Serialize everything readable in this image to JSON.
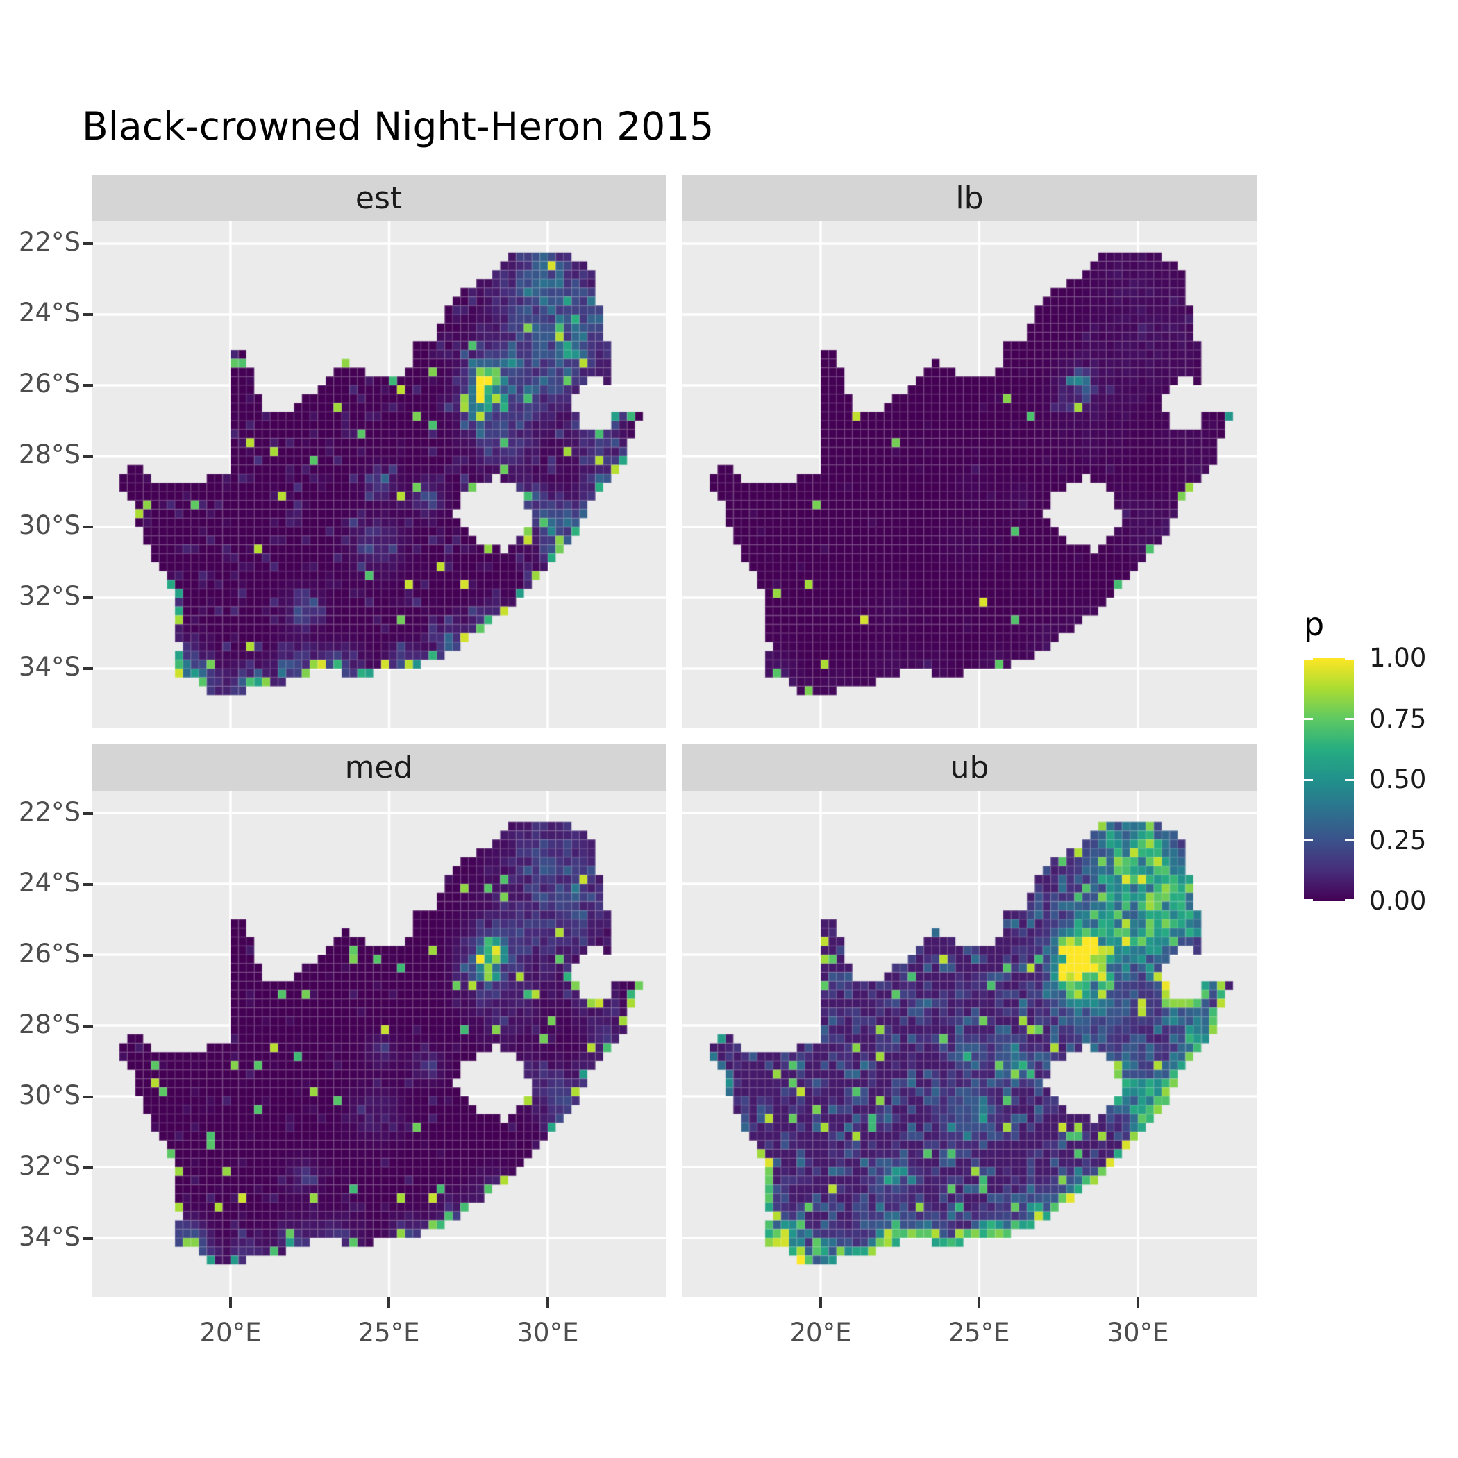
{
  "title": "Black-crowned Night-Heron 2015",
  "legend": {
    "title": "p",
    "labels": [
      "1.00",
      "0.75",
      "0.50",
      "0.25",
      "0.00"
    ],
    "values": [
      1.0,
      0.75,
      0.5,
      0.25,
      0.0
    ]
  },
  "axes": {
    "x": {
      "labels": [
        "20°E",
        "25°E",
        "30°E"
      ],
      "lons": [
        20,
        25,
        30
      ]
    },
    "y": {
      "labels": [
        "22°S",
        "24°S",
        "26°S",
        "28°S",
        "30°S",
        "32°S",
        "34°S"
      ],
      "lats": [
        -22,
        -24,
        -26,
        -28,
        -30,
        -32,
        -34
      ]
    }
  },
  "colors": {
    "background": "#FFFFFF",
    "panel": "#EBEBEB",
    "strip": "#D5D5D5",
    "grid": "#FFFFFF",
    "axis_text": "#4D4D4D",
    "tick": "#333333",
    "title_text": "#000000",
    "strip_text": "#1A1A1A",
    "legend_text": "#1A1A1A",
    "cell_grid": "rgba(255,255,255,0.13)"
  },
  "viridis": [
    {
      "t": 0.0,
      "color": "#440154"
    },
    {
      "t": 0.125,
      "color": "#472d7b"
    },
    {
      "t": 0.25,
      "color": "#3b528b"
    },
    {
      "t": 0.375,
      "color": "#2c728e"
    },
    {
      "t": 0.5,
      "color": "#21918c"
    },
    {
      "t": 0.625,
      "color": "#27ad81"
    },
    {
      "t": 0.75,
      "color": "#5ec962"
    },
    {
      "t": 0.875,
      "color": "#aadc32"
    },
    {
      "t": 1.0,
      "color": "#fde725"
    }
  ],
  "chart_data": {
    "type": "heatmap",
    "title": "Black-crowned Night-Heron 2015",
    "facet_labels": [
      "est",
      "lb",
      "med",
      "ub"
    ],
    "x_ticks": [
      "20°E",
      "25°E",
      "30°E"
    ],
    "y_ticks": [
      "22°S",
      "24°S",
      "26°S",
      "28°S",
      "30°S",
      "32°S",
      "34°S"
    ],
    "x_range_lon": [
      15.62,
      33.75
    ],
    "y_range_lat": [
      -35.67,
      -21.37
    ],
    "colorbar": {
      "title": "p",
      "range": [
        0,
        1
      ],
      "ticks": [
        0,
        0.25,
        0.5,
        0.75,
        1
      ],
      "palette": "viridis"
    },
    "grid": "major-only-white",
    "legend_position": "right",
    "cell_deg": 0.25,
    "facets": [
      {
        "label": "est",
        "seed": 3,
        "hot_weight": 0.5,
        "base": 0.0,
        "noise_threshold": 0.78,
        "noise_amp": 0.6,
        "noise_hot_mix": 0.25,
        "spike_threshold": 0.975,
        "spike_value": 0.95,
        "core_amp": 0.9,
        "edge_prob": 0.38,
        "edge_value": 0.95
      },
      {
        "label": "lb",
        "seed": 7,
        "hot_weight": 0.07,
        "base": 0.0,
        "noise_threshold": 0.94,
        "noise_amp": 0.12,
        "noise_hot_mix": 0.3,
        "spike_threshold": 0.9955,
        "spike_value": 0.95,
        "core_amp": 0.5,
        "edge_prob": 0.1,
        "edge_value": 0.9
      },
      {
        "label": "med",
        "seed": 5,
        "hot_weight": 0.3,
        "base": 0.0,
        "noise_threshold": 0.9,
        "noise_amp": 0.35,
        "noise_hot_mix": 0.3,
        "spike_threshold": 0.968,
        "spike_value": 0.93,
        "core_amp": 1.1,
        "edge_prob": 0.3,
        "edge_value": 0.95
      },
      {
        "label": "ub",
        "seed": 9,
        "hot_weight": 0.9,
        "base": 0.07,
        "noise_threshold": 0.48,
        "noise_amp": 0.6,
        "noise_hot_mix": 0.55,
        "spike_threshold": 0.94,
        "spike_value": 0.92,
        "core_amp": 1.2,
        "edge_prob": 0.85,
        "edge_value": 1.0
      }
    ],
    "map": {
      "boundary": [
        [
          16.45,
          -28.63
        ],
        [
          17.05,
          -28.25
        ],
        [
          17.45,
          -28.7
        ],
        [
          18.2,
          -28.88
        ],
        [
          19.0,
          -28.75
        ],
        [
          19.6,
          -28.5
        ],
        [
          19.98,
          -28.43
        ],
        [
          19.98,
          -24.77
        ],
        [
          20.35,
          -25.05
        ],
        [
          20.65,
          -25.5
        ],
        [
          20.85,
          -26.15
        ],
        [
          21.15,
          -26.85
        ],
        [
          21.7,
          -26.85
        ],
        [
          22.2,
          -26.4
        ],
        [
          22.65,
          -26.12
        ],
        [
          22.9,
          -25.9
        ],
        [
          23.5,
          -25.3
        ],
        [
          24.2,
          -25.65
        ],
        [
          24.9,
          -25.82
        ],
        [
          25.6,
          -25.65
        ],
        [
          25.9,
          -24.75
        ],
        [
          26.45,
          -24.63
        ],
        [
          26.85,
          -23.75
        ],
        [
          27.55,
          -23.25
        ],
        [
          28.3,
          -22.9
        ],
        [
          29.05,
          -22.2
        ],
        [
          29.7,
          -22.15
        ],
        [
          30.4,
          -22.35
        ],
        [
          31.3,
          -22.4
        ],
        [
          31.55,
          -23.6
        ],
        [
          31.9,
          -24.8
        ],
        [
          32.0,
          -25.6
        ],
        [
          31.95,
          -25.95
        ],
        [
          31.4,
          -25.72
        ],
        [
          30.95,
          -25.98
        ],
        [
          30.78,
          -26.45
        ],
        [
          30.92,
          -26.95
        ],
        [
          31.15,
          -27.2
        ],
        [
          31.55,
          -27.3
        ],
        [
          31.97,
          -27.32
        ],
        [
          32.13,
          -26.84
        ],
        [
          32.89,
          -26.86
        ],
        [
          32.6,
          -27.5
        ],
        [
          32.4,
          -28.15
        ],
        [
          32.0,
          -28.6
        ],
        [
          31.6,
          -29.0
        ],
        [
          31.05,
          -29.87
        ],
        [
          30.6,
          -30.6
        ],
        [
          30.15,
          -31.0
        ],
        [
          29.5,
          -31.65
        ],
        [
          28.9,
          -32.25
        ],
        [
          28.1,
          -32.8
        ],
        [
          27.4,
          -33.25
        ],
        [
          26.5,
          -33.75
        ],
        [
          25.65,
          -33.95
        ],
        [
          25.0,
          -34.0
        ],
        [
          24.2,
          -34.2
        ],
        [
          23.4,
          -34.1
        ],
        [
          22.6,
          -34.05
        ],
        [
          21.8,
          -34.4
        ],
        [
          21.0,
          -34.4
        ],
        [
          20.3,
          -34.75
        ],
        [
          20.0,
          -34.83
        ],
        [
          19.4,
          -34.65
        ],
        [
          19.1,
          -34.35
        ],
        [
          18.8,
          -34.1
        ],
        [
          18.48,
          -34.35
        ],
        [
          18.35,
          -34.1
        ],
        [
          18.3,
          -33.85
        ],
        [
          18.45,
          -33.4
        ],
        [
          18.2,
          -33.1
        ],
        [
          18.1,
          -32.75
        ],
        [
          18.3,
          -32.55
        ],
        [
          18.25,
          -31.9
        ],
        [
          17.85,
          -31.3
        ],
        [
          17.55,
          -30.8
        ],
        [
          17.25,
          -30.3
        ],
        [
          17.05,
          -29.7
        ],
        [
          16.8,
          -29.2
        ]
      ],
      "hole": [
        [
          27.05,
          -29.62
        ],
        [
          27.35,
          -29.1
        ],
        [
          27.75,
          -28.85
        ],
        [
          28.35,
          -28.6
        ],
        [
          28.9,
          -28.75
        ],
        [
          29.35,
          -29.25
        ],
        [
          29.45,
          -29.8
        ],
        [
          29.15,
          -30.2
        ],
        [
          28.6,
          -30.65
        ],
        [
          28.1,
          -30.55
        ],
        [
          27.65,
          -30.35
        ],
        [
          27.3,
          -30.0
        ]
      ],
      "hotspots": [
        [
          28.0,
          -26.15,
          0.35,
          1.3
        ],
        [
          28.25,
          -25.75,
          0.5,
          0.7
        ],
        [
          27.9,
          -26.8,
          0.45,
          0.5
        ],
        [
          29.3,
          -25.8,
          0.9,
          0.45
        ],
        [
          30.2,
          -23.9,
          1.0,
          0.5
        ],
        [
          31.0,
          -24.8,
          0.7,
          0.5
        ],
        [
          29.8,
          -22.8,
          0.8,
          0.45
        ],
        [
          30.9,
          -29.9,
          0.45,
          0.8
        ],
        [
          30.3,
          -30.7,
          0.35,
          0.6
        ],
        [
          32.0,
          -28.6,
          0.5,
          0.55
        ],
        [
          29.6,
          -29.6,
          0.5,
          0.55
        ],
        [
          26.2,
          -29.12,
          0.3,
          0.5
        ],
        [
          24.75,
          -28.75,
          0.3,
          0.4
        ],
        [
          25.6,
          -33.95,
          0.35,
          0.8
        ],
        [
          18.55,
          -33.95,
          0.4,
          0.9
        ],
        [
          19.0,
          -34.4,
          0.35,
          0.6
        ],
        [
          20.5,
          -34.5,
          0.4,
          0.55
        ],
        [
          22.2,
          -34.05,
          0.45,
          0.6
        ],
        [
          23.5,
          -33.95,
          0.4,
          0.5
        ],
        [
          27.0,
          -33.3,
          0.4,
          0.5
        ],
        [
          28.3,
          -32.7,
          0.4,
          0.45
        ],
        [
          22.3,
          -32.3,
          0.35,
          0.4
        ],
        [
          24.6,
          -30.5,
          0.5,
          0.35
        ],
        [
          31.5,
          -27.3,
          0.5,
          0.4
        ],
        [
          28.6,
          -27.6,
          0.6,
          0.35
        ]
      ]
    }
  }
}
